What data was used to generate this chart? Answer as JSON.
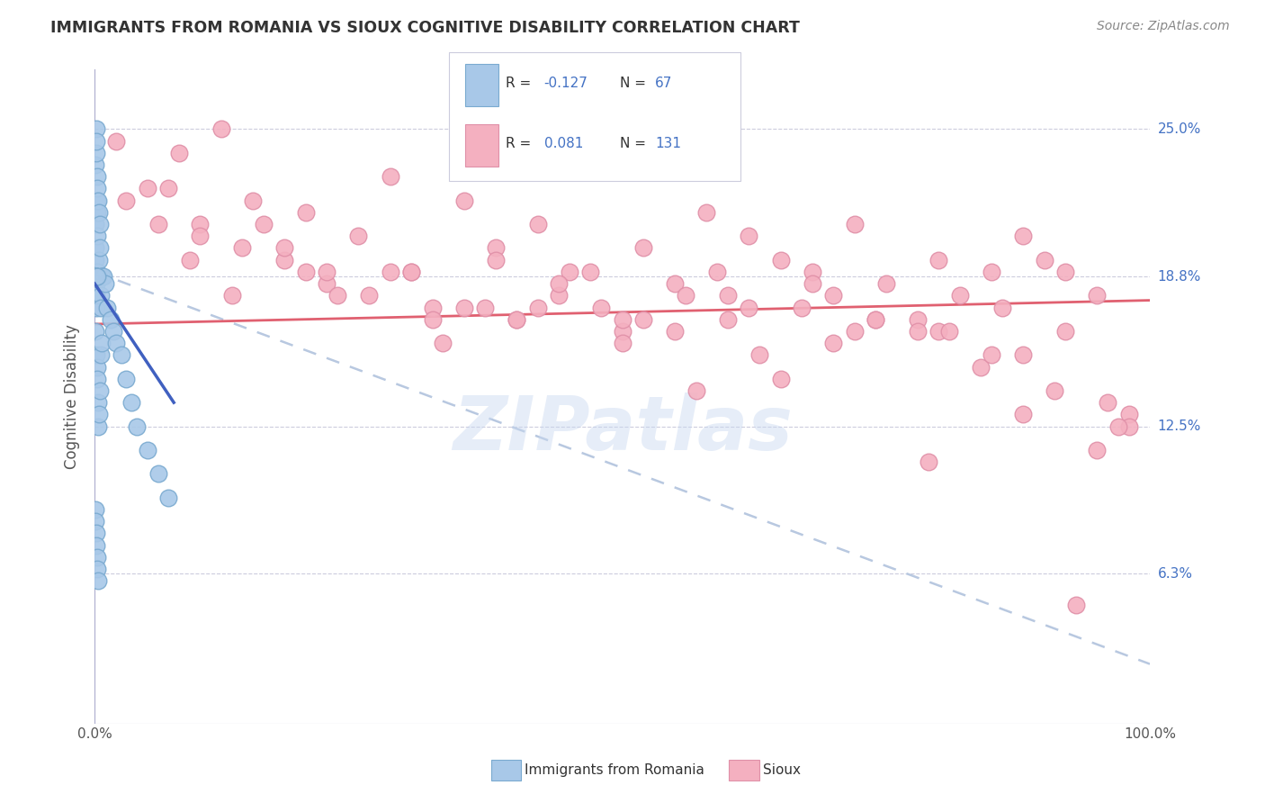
{
  "title": "IMMIGRANTS FROM ROMANIA VS SIOUX COGNITIVE DISABILITY CORRELATION CHART",
  "source": "Source: ZipAtlas.com",
  "ylabel": "Cognitive Disability",
  "ytick_labels": [
    "6.3%",
    "12.5%",
    "18.8%",
    "25.0%"
  ],
  "ytick_values": [
    6.3,
    12.5,
    18.8,
    25.0
  ],
  "xlim": [
    0.0,
    100.0
  ],
  "ylim": [
    0.0,
    27.5
  ],
  "color_romania": "#A8C8E8",
  "color_sioux": "#F4B0C0",
  "color_trend_romania": "#4060C0",
  "color_trend_sioux": "#E06070",
  "color_trend_dashed": "#B8C8E0",
  "background_color": "#FFFFFF",
  "watermark": "ZIPatlas",
  "romania_x": [
    0.05,
    0.08,
    0.1,
    0.12,
    0.15,
    0.18,
    0.2,
    0.22,
    0.25,
    0.28,
    0.3,
    0.35,
    0.4,
    0.45,
    0.5,
    0.55,
    0.6,
    0.65,
    0.7,
    0.8,
    0.1,
    0.15,
    0.2,
    0.25,
    0.3,
    0.35,
    0.4,
    0.5,
    0.6,
    0.7,
    0.1,
    0.12,
    0.15,
    0.18,
    0.22,
    0.28,
    0.35,
    0.42,
    0.5,
    0.08,
    0.1,
    0.13,
    0.16,
    0.2,
    0.25,
    0.3,
    1.0,
    1.2,
    1.5,
    1.8,
    2.0,
    2.5,
    3.0,
    3.5,
    4.0,
    5.0,
    6.0,
    7.0,
    0.05,
    0.07,
    0.09,
    0.11,
    0.14,
    0.17,
    0.21
  ],
  "romania_y": [
    19.5,
    21.0,
    20.0,
    18.5,
    17.5,
    18.0,
    19.0,
    20.5,
    21.5,
    22.0,
    18.8,
    18.8,
    18.8,
    19.5,
    20.0,
    18.0,
    17.5,
    18.8,
    18.8,
    18.8,
    16.5,
    15.5,
    15.0,
    14.5,
    13.5,
    12.5,
    13.0,
    14.0,
    15.5,
    16.0,
    23.5,
    24.0,
    25.0,
    24.5,
    23.0,
    22.5,
    22.0,
    21.5,
    21.0,
    9.0,
    8.5,
    8.0,
    7.5,
    7.0,
    6.5,
    6.0,
    18.5,
    17.5,
    17.0,
    16.5,
    16.0,
    15.5,
    14.5,
    13.5,
    12.5,
    11.5,
    10.5,
    9.5,
    18.8,
    18.8,
    18.8,
    18.8,
    18.8,
    18.8,
    18.8
  ],
  "sioux_x": [
    5.0,
    8.0,
    10.0,
    12.0,
    15.0,
    18.0,
    20.0,
    22.0,
    25.0,
    28.0,
    30.0,
    32.0,
    35.0,
    38.0,
    40.0,
    42.0,
    45.0,
    48.0,
    50.0,
    52.0,
    55.0,
    58.0,
    60.0,
    62.0,
    65.0,
    68.0,
    70.0,
    72.0,
    75.0,
    78.0,
    80.0,
    82.0,
    85.0,
    88.0,
    90.0,
    92.0,
    95.0,
    98.0,
    6.0,
    14.0,
    20.0,
    26.0,
    32.0,
    38.0,
    44.0,
    50.0,
    56.0,
    62.0,
    68.0,
    74.0,
    80.0,
    86.0,
    92.0,
    98.0,
    3.0,
    9.0,
    16.0,
    23.0,
    30.0,
    37.0,
    44.0,
    52.0,
    59.0,
    67.0,
    74.0,
    81.0,
    88.0,
    95.0,
    10.0,
    22.0,
    35.0,
    47.0,
    60.0,
    72.0,
    84.0,
    96.0,
    2.0,
    18.0,
    40.0,
    55.0,
    70.0,
    85.0,
    97.0,
    7.0,
    28.0,
    50.0,
    65.0,
    78.0,
    91.0,
    13.0,
    42.0,
    63.0,
    79.0,
    93.0,
    33.0,
    57.0,
    88.0
  ],
  "sioux_y": [
    22.5,
    24.0,
    21.0,
    25.0,
    22.0,
    19.5,
    21.5,
    18.5,
    20.5,
    23.0,
    19.0,
    17.5,
    22.0,
    20.0,
    17.0,
    21.0,
    19.0,
    17.5,
    16.5,
    20.0,
    18.5,
    21.5,
    18.0,
    20.5,
    19.5,
    19.0,
    18.0,
    21.0,
    18.5,
    17.0,
    19.5,
    18.0,
    19.0,
    20.5,
    19.5,
    16.5,
    18.0,
    13.0,
    21.0,
    20.0,
    19.0,
    18.0,
    17.0,
    19.5,
    18.0,
    17.0,
    18.0,
    17.5,
    18.5,
    17.0,
    16.5,
    17.5,
    19.0,
    12.5,
    22.0,
    19.5,
    21.0,
    18.0,
    19.0,
    17.5,
    18.5,
    17.0,
    19.0,
    17.5,
    17.0,
    16.5,
    15.5,
    11.5,
    20.5,
    19.0,
    17.5,
    19.0,
    17.0,
    16.5,
    15.0,
    13.5,
    24.5,
    20.0,
    17.0,
    16.5,
    16.0,
    15.5,
    12.5,
    22.5,
    19.0,
    16.0,
    14.5,
    16.5,
    14.0,
    18.0,
    17.5,
    15.5,
    11.0,
    5.0,
    16.0,
    14.0,
    13.0
  ],
  "trend_romania_x_start": 0.0,
  "trend_romania_x_end": 7.5,
  "trend_romania_y_start": 18.5,
  "trend_romania_y_end": 13.5,
  "trend_sioux_x_start": 0.0,
  "trend_sioux_x_end": 100.0,
  "trend_sioux_y_start": 16.8,
  "trend_sioux_y_end": 17.8,
  "trend_dashed_x_start": 0.0,
  "trend_dashed_x_end": 100.0,
  "trend_dashed_y_start": 19.0,
  "trend_dashed_y_end": 2.5
}
